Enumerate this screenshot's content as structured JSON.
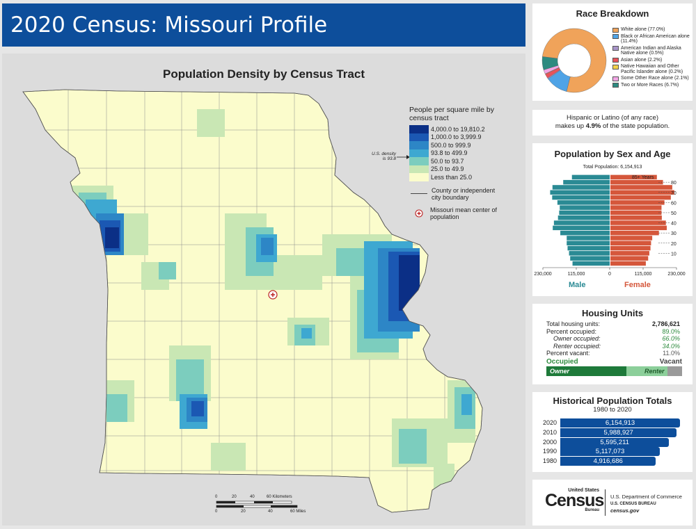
{
  "title": "2020 Census: Missouri Profile",
  "map": {
    "title": "Population Density by Census Tract",
    "legend_title": "People per square mile by census tract",
    "classes": [
      {
        "label": "4,000.0 to 19,810.2",
        "color": "#0b2f86"
      },
      {
        "label": "1,000.0 to 3,999.9",
        "color": "#1b58b3"
      },
      {
        "label": "500.0 to 999.9",
        "color": "#2d86c6"
      },
      {
        "label": "93.8 to 499.9",
        "color": "#3ea8d1"
      },
      {
        "label": "50.0 to 93.7",
        "color": "#7ccdbe"
      },
      {
        "label": "25.0 to 49.9",
        "color": "#c9e7b4"
      },
      {
        "label": "Less than 25.0",
        "color": "#fbfccc"
      }
    ],
    "us_density_note": "U.S. density is 93.8",
    "boundary_label": "County or independent city boundary",
    "center_label": "Missouri mean center of population",
    "scale_km": [
      "0",
      "20",
      "40",
      "60 Kilometers"
    ],
    "scale_mi": [
      "0",
      "20",
      "40",
      "60 Miles"
    ]
  },
  "race": {
    "title": "Race Breakdown",
    "items": [
      {
        "label": "White alone (77.0%)",
        "value": 77.0,
        "color": "#f0a35a"
      },
      {
        "label": "Black or African American alone (11.4%)",
        "value": 11.4,
        "color": "#4fa3e6"
      },
      {
        "label": "American Indian and Alaska Native alone (0.5%)",
        "value": 0.5,
        "color": "#a895c9"
      },
      {
        "label": "Asian alone (2.2%)",
        "value": 2.2,
        "color": "#e8525a"
      },
      {
        "label": "Native Hawaiian and Other Pacific Islander alone (0.2%)",
        "value": 0.2,
        "color": "#f2d24a"
      },
      {
        "label": "Some Other Race alone (2.1%)",
        "value": 2.1,
        "color": "#f2a6e6"
      },
      {
        "label": "Two or More Races (6.7%)",
        "value": 6.7,
        "color": "#2e8a80"
      }
    ]
  },
  "hispanic": {
    "line1": "Hispanic or Latino (of any race)",
    "prefix": "makes up ",
    "pct": "4.9%",
    "suffix": " of the state population."
  },
  "pyramid": {
    "title": "Population by Sex and Age",
    "total": "Total Population: 6,154,913",
    "top_label": "85+ Years",
    "age_ticks": [
      "80",
      "70",
      "60",
      "50",
      "40",
      "30",
      "20",
      "10"
    ],
    "x_ticks": [
      "230,000",
      "115,000",
      "0",
      "115,000",
      "230,000"
    ],
    "male_label": "Male",
    "female_label": "Female",
    "male_color": "#2a8a94",
    "female_color": "#d5573b",
    "male": [
      128000,
      136000,
      140000,
      145000,
      148000,
      148000,
      170000,
      196000,
      192000,
      178000,
      174000,
      172000,
      180000,
      198000,
      205000,
      197000,
      160000,
      130000
    ],
    "female": [
      122000,
      130000,
      134000,
      138000,
      140000,
      144000,
      167000,
      194000,
      191000,
      177000,
      176000,
      176000,
      186000,
      208000,
      220000,
      213000,
      181000,
      160000
    ]
  },
  "housing": {
    "title": "Housing Units",
    "rows": [
      {
        "label": "Total housing units:",
        "value": "2,786,621"
      },
      {
        "label": "Percent occupied:",
        "value": "89.0%"
      },
      {
        "label": "Owner occupied:",
        "value": "66.0%"
      },
      {
        "label": "Renter occupied:",
        "value": "34.0%"
      },
      {
        "label": "Percent vacant:",
        "value": "11.0%"
      }
    ],
    "occupied_label": "Occupied",
    "vacant_label": "Vacant",
    "owner_label": "Owner",
    "renter_label": "Renter",
    "owner_pct": 66.0,
    "occupied_pct": 89.0
  },
  "history": {
    "title": "Historical Population Totals",
    "subtitle": "1980 to 2020",
    "rows": [
      {
        "year": "2020",
        "label": "6,154,913",
        "value": 6154913
      },
      {
        "year": "2010",
        "label": "5,988,927",
        "value": 5988927
      },
      {
        "year": "2000",
        "label": "5,595,211",
        "value": 5595211
      },
      {
        "year": "1990",
        "label": "5,117,073",
        "value": 5117073
      },
      {
        "year": "1980",
        "label": "4,916,686",
        "value": 4916686
      }
    ]
  },
  "footer": {
    "logo_top": "United States",
    "logo_main": "Census",
    "logo_sub": "Bureau",
    "dept": "U.S. Department of Commerce",
    "bureau": "U.S. CENSUS BUREAU",
    "site": "census.gov"
  }
}
